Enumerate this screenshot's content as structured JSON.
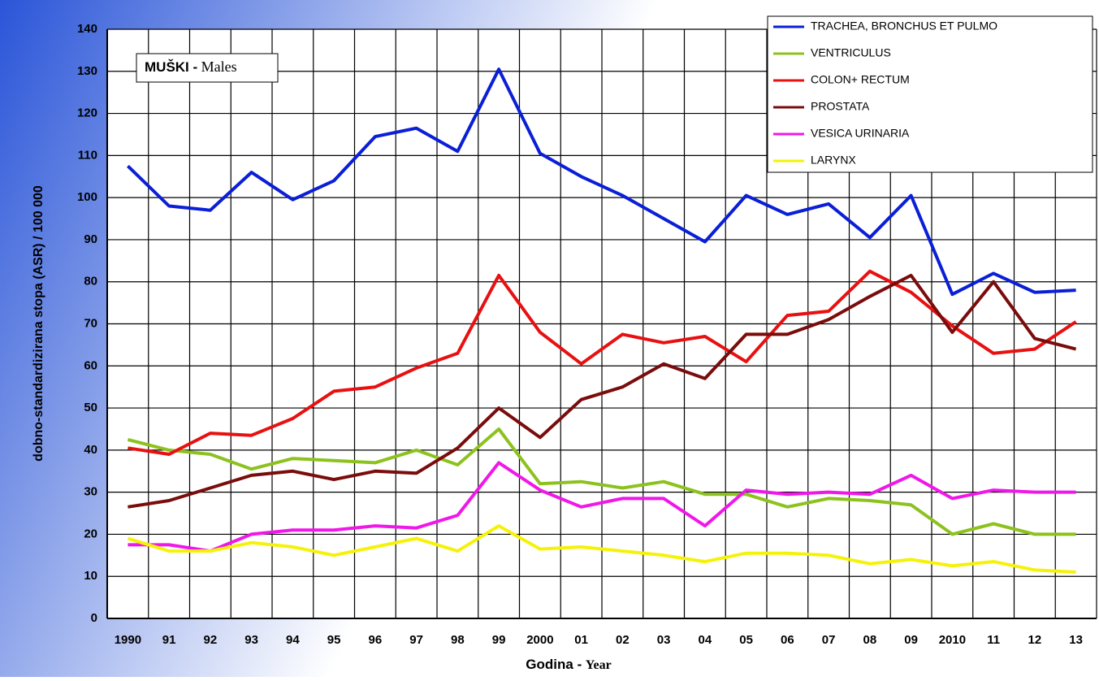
{
  "chart_data": {
    "type": "line",
    "title": "MUŠKI -",
    "title_en": "Males",
    "x_label": "Godina -",
    "x_label_en": "Year",
    "y_label": "dobno-standardizirana stopa (ASR) / 100 000",
    "categories": [
      "1990",
      "91",
      "92",
      "93",
      "94",
      "95",
      "96",
      "97",
      "98",
      "99",
      "2000",
      "01",
      "02",
      "03",
      "04",
      "05",
      "06",
      "07",
      "08",
      "09",
      "2010",
      "11",
      "12",
      "13"
    ],
    "ylim": [
      0,
      140
    ],
    "yticks": [
      0,
      10,
      20,
      30,
      40,
      50,
      60,
      70,
      80,
      90,
      100,
      110,
      120,
      130,
      140
    ],
    "grid": true,
    "legend": "upper right",
    "series": [
      {
        "name": "TRACHEA, BRONCHUS ET PULMO",
        "color": "#0a1fd6",
        "values": [
          107.5,
          98,
          97,
          106,
          99.5,
          104,
          114.5,
          116.5,
          111,
          130.5,
          110.5,
          105,
          100.5,
          95,
          89.5,
          100.5,
          96,
          98.5,
          90.5,
          100.5,
          77,
          82,
          77.5,
          78
        ]
      },
      {
        "name": "VENTRICULUS",
        "color": "#8cc21e",
        "values": [
          42.5,
          40,
          39,
          35.5,
          38,
          37.5,
          37,
          40,
          36.5,
          45,
          32,
          32.5,
          31,
          32.5,
          29.5,
          29.5,
          26.5,
          28.5,
          28,
          27,
          20,
          22.5,
          20,
          20
        ]
      },
      {
        "name": "COLON+ RECTUM",
        "color": "#e81010",
        "values": [
          40.5,
          39,
          44,
          43.5,
          47.5,
          54,
          55,
          59.5,
          63,
          81.5,
          68,
          60.5,
          67.5,
          65.5,
          67,
          61,
          72,
          73,
          82.5,
          77.5,
          69.5,
          63,
          64,
          70.5
        ]
      },
      {
        "name": "PROSTATA",
        "color": "#7a0c0c",
        "values": [
          26.5,
          28,
          31,
          34,
          35,
          33,
          35,
          34.5,
          40.5,
          50,
          43,
          52,
          55,
          60.5,
          57,
          67.5,
          67.5,
          71,
          76.5,
          81.5,
          68,
          80,
          66.5,
          64
        ]
      },
      {
        "name": "VESICA URINARIA",
        "color": "#f018e8",
        "values": [
          17.5,
          17.5,
          16,
          20,
          21,
          21,
          22,
          21.5,
          24.5,
          37,
          30.5,
          26.5,
          28.5,
          28.5,
          22,
          30.5,
          29.5,
          30,
          29.5,
          34,
          28.5,
          30.5,
          30,
          30
        ]
      },
      {
        "name": "LARYNX",
        "color": "#f5f20a",
        "values": [
          19,
          16,
          16,
          18,
          17,
          15,
          17,
          19,
          16,
          22,
          16.5,
          17,
          16,
          15,
          13.5,
          15.5,
          15.5,
          15,
          13,
          14,
          12.5,
          13.5,
          11.5,
          11
        ]
      }
    ]
  }
}
